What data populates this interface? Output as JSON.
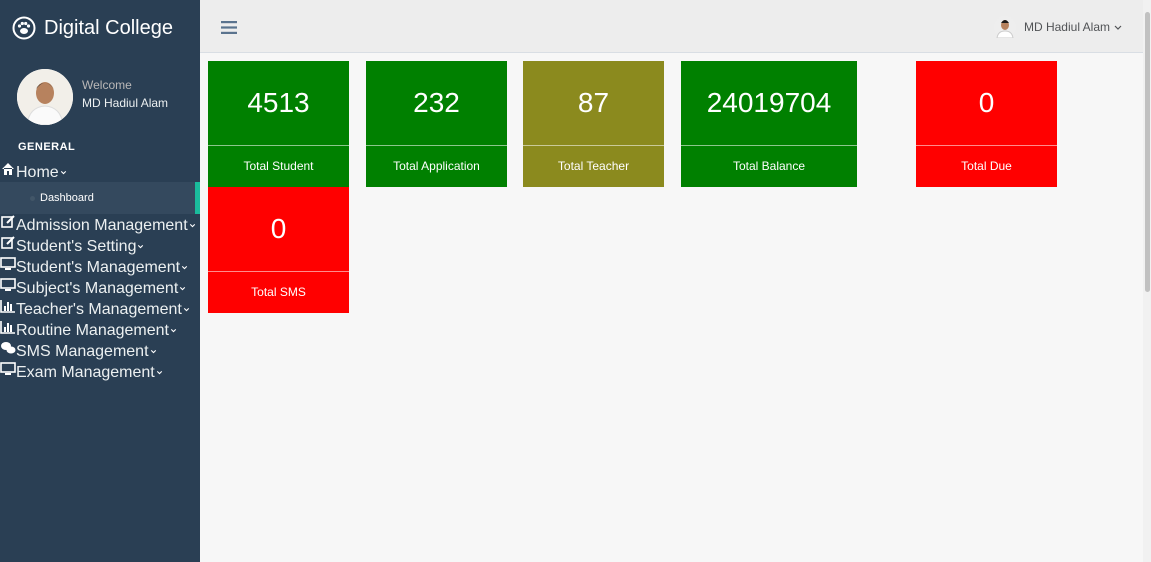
{
  "brand": "Digital College",
  "profile": {
    "welcome": "Welcome",
    "name": "MD Hadiul Alam"
  },
  "section": "GENERAL",
  "menu": [
    {
      "label": "Home",
      "children": [
        "Dashboard"
      ]
    },
    {
      "label": "Admission Management"
    },
    {
      "label": "Student's Setting"
    },
    {
      "label": "Student's Management"
    },
    {
      "label": "Subject's Management"
    },
    {
      "label": "Teacher's Management"
    },
    {
      "label": "Routine Management"
    },
    {
      "label": "SMS Management"
    },
    {
      "label": "Exam Management"
    }
  ],
  "user": "MD Hadiul Alam",
  "cards": [
    {
      "value": 4513,
      "label": "Total Student",
      "color": "#008000"
    },
    {
      "value": 232,
      "label": "Total Application",
      "color": "#008000"
    },
    {
      "value": 87,
      "label": "Total Teacher",
      "color": "#8b8a1e"
    },
    {
      "value": 24019704,
      "label": "Total Balance",
      "color": "#008000"
    },
    {
      "value": 0,
      "label": "Total Due",
      "color": "#ff0000"
    },
    {
      "value": 0,
      "label": "Total SMS",
      "color": "#ff0000"
    }
  ]
}
